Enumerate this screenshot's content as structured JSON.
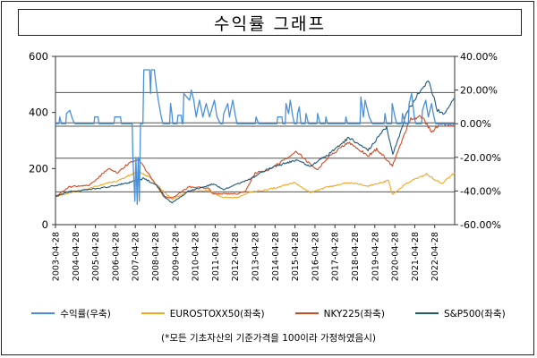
{
  "chart_data": {
    "type": "line",
    "title": "수익률 그래프",
    "footnote": "(*모든 기초자산의 기준가격을 100이라 가정하였음시)",
    "left_axis": {
      "min": 0,
      "max": 600,
      "ticks": [
        "0",
        "200",
        "400",
        "600"
      ]
    },
    "right_axis": {
      "min": -60,
      "max": 40,
      "ticks": [
        "-60.00%",
        "-40.00%",
        "-20.00%",
        "0.00%",
        "20.00%",
        "40.00%"
      ]
    },
    "x_range": [
      "2003-04-28",
      "2023-04-28"
    ],
    "x_ticks": [
      "2003-04-28",
      "2004-04-28",
      "2005-04-28",
      "2006-04-28",
      "2007-04-28",
      "2008-04-28",
      "2009-04-28",
      "2010-04-28",
      "2011-04-28",
      "2012-04-28",
      "2013-04-28",
      "2014-04-28",
      "2015-04-28",
      "2016-04-28",
      "2017-04-28",
      "2018-04-28",
      "2019-04-28",
      "2020-04-28",
      "2021-04-28",
      "2022-04-28"
    ],
    "hlines_right_axis": [
      18.5,
      0.5,
      -1.5,
      -20.5,
      -40.5
    ],
    "grid": false,
    "legend_position": "bottom",
    "series": [
      {
        "name": "수익률(우축)",
        "axis": "right",
        "color": "#4a90d9",
        "points": [
          [
            "2003-04-28",
            0
          ],
          [
            "2003-07-01",
            0
          ],
          [
            "2003-07-15",
            4
          ],
          [
            "2003-08-15",
            0
          ],
          [
            "2003-11-01",
            0
          ],
          [
            "2003-11-15",
            6
          ],
          [
            "2004-01-15",
            8
          ],
          [
            "2004-03-01",
            3
          ],
          [
            "2004-04-15",
            0
          ],
          [
            "2005-04-01",
            0
          ],
          [
            "2005-04-15",
            4
          ],
          [
            "2005-06-15",
            4
          ],
          [
            "2005-07-01",
            0
          ],
          [
            "2006-04-01",
            0
          ],
          [
            "2006-04-15",
            4
          ],
          [
            "2006-08-01",
            4
          ],
          [
            "2006-08-15",
            0
          ],
          [
            "2007-03-01",
            0
          ],
          [
            "2007-03-15",
            -20
          ],
          [
            "2007-04-20",
            -46
          ],
          [
            "2007-05-10",
            -20
          ],
          [
            "2007-06-01",
            -48
          ],
          [
            "2007-06-20",
            -20
          ],
          [
            "2007-07-10",
            -46
          ],
          [
            "2007-08-01",
            0
          ],
          [
            "2007-09-15",
            0
          ],
          [
            "2007-10-01",
            32
          ],
          [
            "2008-01-15",
            32
          ],
          [
            "2008-02-01",
            18
          ],
          [
            "2008-02-15",
            32
          ],
          [
            "2008-04-10",
            32
          ],
          [
            "2008-05-15",
            22
          ],
          [
            "2008-07-01",
            12
          ],
          [
            "2008-08-15",
            4
          ],
          [
            "2008-09-15",
            0
          ],
          [
            "2009-01-15",
            0
          ],
          [
            "2009-02-01",
            12
          ],
          [
            "2009-03-01",
            5
          ],
          [
            "2009-03-15",
            0
          ],
          [
            "2009-06-01",
            0
          ],
          [
            "2009-06-15",
            5
          ],
          [
            "2009-08-15",
            5
          ],
          [
            "2009-09-01",
            0
          ],
          [
            "2009-09-15",
            0
          ],
          [
            "2009-10-01",
            18
          ],
          [
            "2010-01-15",
            14
          ],
          [
            "2010-02-15",
            20
          ],
          [
            "2010-04-01",
            14
          ],
          [
            "2010-05-15",
            4
          ],
          [
            "2010-07-15",
            14
          ],
          [
            "2010-09-15",
            4
          ],
          [
            "2010-11-15",
            12
          ],
          [
            "2011-01-15",
            4
          ],
          [
            "2011-04-15",
            14
          ],
          [
            "2011-06-01",
            4
          ],
          [
            "2011-08-01",
            0
          ],
          [
            "2011-09-15",
            0
          ],
          [
            "2011-10-01",
            6
          ],
          [
            "2011-12-15",
            12
          ],
          [
            "2012-01-15",
            4
          ],
          [
            "2012-03-15",
            14
          ],
          [
            "2012-05-01",
            5
          ],
          [
            "2012-06-01",
            0
          ],
          [
            "2013-05-01",
            0
          ],
          [
            "2013-05-15",
            4
          ],
          [
            "2013-07-01",
            0
          ],
          [
            "2014-06-01",
            0
          ],
          [
            "2014-06-15",
            4
          ],
          [
            "2014-09-01",
            4
          ],
          [
            "2014-09-15",
            0
          ],
          [
            "2014-11-01",
            0
          ],
          [
            "2014-11-15",
            12
          ],
          [
            "2015-01-01",
            6
          ],
          [
            "2015-02-01",
            14
          ],
          [
            "2015-03-15",
            5
          ],
          [
            "2015-04-15",
            0
          ],
          [
            "2015-06-01",
            0
          ],
          [
            "2015-06-15",
            6
          ],
          [
            "2015-07-15",
            10
          ],
          [
            "2015-08-15",
            0
          ],
          [
            "2015-11-01",
            0
          ],
          [
            "2015-11-15",
            6
          ],
          [
            "2016-01-01",
            0
          ],
          [
            "2016-06-01",
            0
          ],
          [
            "2016-06-15",
            6
          ],
          [
            "2016-08-01",
            0
          ],
          [
            "2016-11-01",
            0
          ],
          [
            "2016-11-15",
            4
          ],
          [
            "2016-12-15",
            0
          ],
          [
            "2017-11-01",
            0
          ],
          [
            "2017-11-15",
            4
          ],
          [
            "2017-12-15",
            0
          ],
          [
            "2018-08-01",
            0
          ],
          [
            "2018-08-15",
            16
          ],
          [
            "2018-10-01",
            4
          ],
          [
            "2018-11-01",
            14
          ],
          [
            "2019-01-15",
            4
          ],
          [
            "2019-03-15",
            0
          ],
          [
            "2019-10-15",
            0
          ],
          [
            "2019-11-01",
            6
          ],
          [
            "2019-12-01",
            0
          ],
          [
            "2020-03-01",
            0
          ],
          [
            "2020-03-10",
            12
          ],
          [
            "2020-05-01",
            4
          ],
          [
            "2020-06-01",
            0
          ],
          [
            "2020-09-01",
            0
          ],
          [
            "2020-09-15",
            6
          ],
          [
            "2020-11-01",
            0
          ],
          [
            "2021-01-01",
            0
          ],
          [
            "2021-01-15",
            12
          ],
          [
            "2021-03-01",
            18
          ],
          [
            "2021-04-20",
            4
          ],
          [
            "2021-05-15",
            0
          ],
          [
            "2021-09-01",
            0
          ],
          [
            "2021-09-15",
            8
          ],
          [
            "2021-11-15",
            14
          ],
          [
            "2022-01-01",
            4
          ],
          [
            "2022-03-01",
            12
          ],
          [
            "2022-04-15",
            4
          ],
          [
            "2022-05-15",
            0
          ],
          [
            "2023-04-28",
            0
          ]
        ]
      },
      {
        "name": "EUROSTOXX50(좌축)",
        "axis": "left",
        "color": "#f5a623",
        "points": [
          [
            "2003-04-28",
            100
          ],
          [
            "2004-01-01",
            112
          ],
          [
            "2005-01-01",
            130
          ],
          [
            "2006-01-01",
            150
          ],
          [
            "2006-06-01",
            155
          ],
          [
            "2007-01-01",
            175
          ],
          [
            "2007-07-01",
            190
          ],
          [
            "2008-01-01",
            170
          ],
          [
            "2008-07-01",
            135
          ],
          [
            "2009-03-01",
            90
          ],
          [
            "2010-01-01",
            120
          ],
          [
            "2011-01-01",
            122
          ],
          [
            "2011-09-01",
            98
          ],
          [
            "2012-06-01",
            96
          ],
          [
            "2013-01-01",
            115
          ],
          [
            "2014-01-01",
            125
          ],
          [
            "2015-04-15",
            150
          ],
          [
            "2016-02-01",
            115
          ],
          [
            "2017-01-01",
            135
          ],
          [
            "2018-01-01",
            150
          ],
          [
            "2019-01-01",
            138
          ],
          [
            "2020-01-01",
            157
          ],
          [
            "2020-03-15",
            108
          ],
          [
            "2020-12-01",
            148
          ],
          [
            "2021-12-01",
            180
          ],
          [
            "2022-09-01",
            146
          ],
          [
            "2023-04-28",
            185
          ]
        ]
      },
      {
        "name": "NKY225(좌축)",
        "axis": "left",
        "color": "#d44a20",
        "points": [
          [
            "2003-04-28",
            100
          ],
          [
            "2004-01-01",
            135
          ],
          [
            "2005-01-01",
            140
          ],
          [
            "2006-01-01",
            200
          ],
          [
            "2006-06-01",
            185
          ],
          [
            "2007-01-01",
            220
          ],
          [
            "2007-07-01",
            230
          ],
          [
            "2008-01-01",
            180
          ],
          [
            "2008-10-01",
            100
          ],
          [
            "2009-03-01",
            95
          ],
          [
            "2010-01-01",
            135
          ],
          [
            "2011-01-01",
            130
          ],
          [
            "2011-03-15",
            110
          ],
          [
            "2012-06-01",
            110
          ],
          [
            "2012-11-01",
            120
          ],
          [
            "2013-05-01",
            185
          ],
          [
            "2014-01-01",
            195
          ],
          [
            "2015-06-01",
            260
          ],
          [
            "2016-06-01",
            195
          ],
          [
            "2017-01-01",
            240
          ],
          [
            "2018-01-01",
            295
          ],
          [
            "2018-12-25",
            245
          ],
          [
            "2019-06-01",
            270
          ],
          [
            "2020-03-15",
            210
          ],
          [
            "2021-02-15",
            380
          ],
          [
            "2021-09-15",
            385
          ],
          [
            "2022-03-01",
            330
          ],
          [
            "2022-08-01",
            360
          ],
          [
            "2023-04-28",
            355
          ]
        ]
      },
      {
        "name": "S&P500(좌축)",
        "axis": "left",
        "color": "#1f5a7a",
        "points": [
          [
            "2003-04-28",
            100
          ],
          [
            "2004-01-01",
            118
          ],
          [
            "2005-01-01",
            125
          ],
          [
            "2006-01-01",
            135
          ],
          [
            "2007-01-01",
            150
          ],
          [
            "2007-10-01",
            165
          ],
          [
            "2008-06-01",
            140
          ],
          [
            "2008-11-01",
            95
          ],
          [
            "2009-03-01",
            78
          ],
          [
            "2010-01-01",
            120
          ],
          [
            "2011-04-01",
            145
          ],
          [
            "2011-10-01",
            125
          ],
          [
            "2012-06-01",
            145
          ],
          [
            "2013-01-01",
            160
          ],
          [
            "2014-01-01",
            200
          ],
          [
            "2015-05-01",
            230
          ],
          [
            "2016-02-01",
            210
          ],
          [
            "2017-01-01",
            250
          ],
          [
            "2018-01-01",
            310
          ],
          [
            "2018-12-25",
            265
          ],
          [
            "2019-12-01",
            350
          ],
          [
            "2020-03-23",
            250
          ],
          [
            "2020-12-01",
            400
          ],
          [
            "2021-12-30",
            520
          ],
          [
            "2022-06-15",
            410
          ],
          [
            "2022-10-01",
            390
          ],
          [
            "2023-04-28",
            450
          ]
        ]
      }
    ]
  }
}
